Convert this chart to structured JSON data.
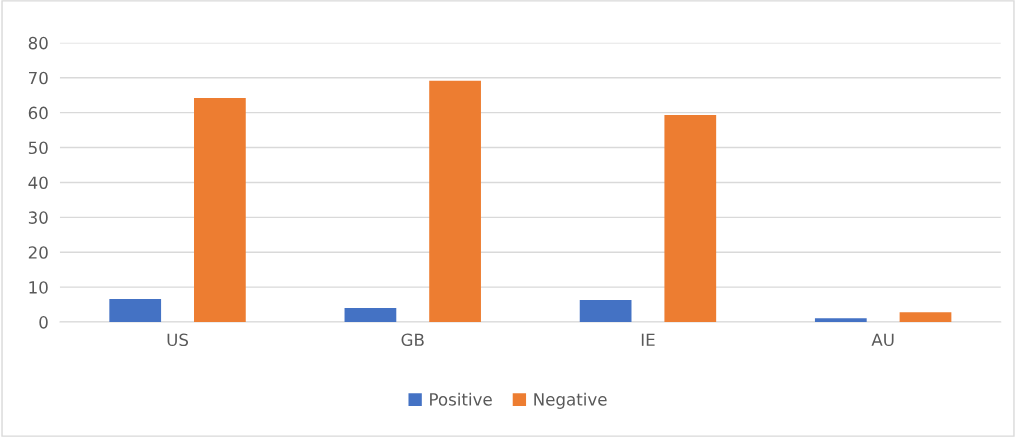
{
  "chart_data": {
    "type": "bar",
    "categories": [
      "US",
      "GB",
      "IE",
      "AU"
    ],
    "series": [
      {
        "name": "Positive",
        "color": "#4472c4",
        "values": [
          6.6,
          4.0,
          6.3,
          1.1
        ]
      },
      {
        "name": "Negative",
        "color": "#ed7d31",
        "values": [
          64.2,
          69.1,
          59.3,
          2.8
        ]
      }
    ],
    "ylim": [
      0,
      80
    ],
    "yticks": [
      0,
      10,
      20,
      30,
      40,
      50,
      60,
      70,
      80
    ],
    "grid": "y",
    "legend": "bottom"
  }
}
